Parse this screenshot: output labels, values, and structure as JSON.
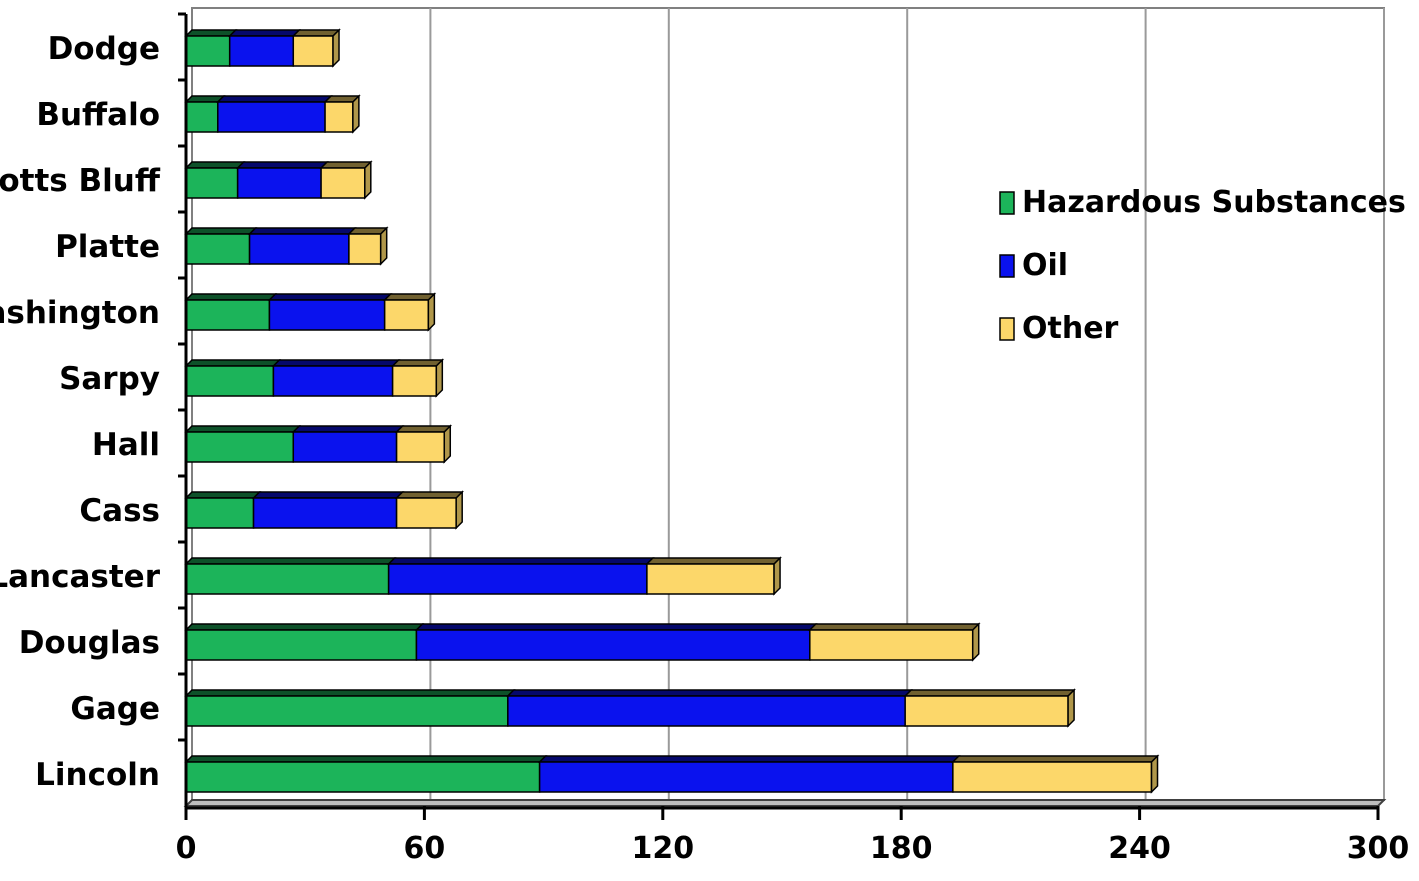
{
  "chart_data": {
    "type": "bar",
    "orientation": "horizontal",
    "stacked": true,
    "title": "",
    "xlabel": "",
    "ylabel": "",
    "xlim": [
      0,
      300
    ],
    "x_ticks": [
      0,
      60,
      120,
      180,
      240,
      300
    ],
    "grid": true,
    "legend_position": "right",
    "categories": [
      "Lincoln",
      "Gage",
      "Douglas",
      "Lancaster",
      "Cass",
      "Hall",
      "Sarpy",
      "Washington",
      "Platte",
      "Scotts Bluff",
      "Buffalo",
      "Dodge"
    ],
    "series": [
      {
        "name": "Hazardous Substances",
        "color": "#1cb45a",
        "values": [
          89,
          81,
          58,
          51,
          17,
          27,
          22,
          21,
          16,
          13,
          8,
          11
        ]
      },
      {
        "name": "Oil",
        "color": "#0a12ee",
        "values": [
          104,
          100,
          99,
          65,
          36,
          26,
          30,
          29,
          25,
          21,
          27,
          16
        ]
      },
      {
        "name": "Other",
        "color": "#fcd76a",
        "values": [
          50,
          41,
          41,
          32,
          15,
          12,
          11,
          11,
          8,
          11,
          7,
          10
        ]
      }
    ]
  }
}
